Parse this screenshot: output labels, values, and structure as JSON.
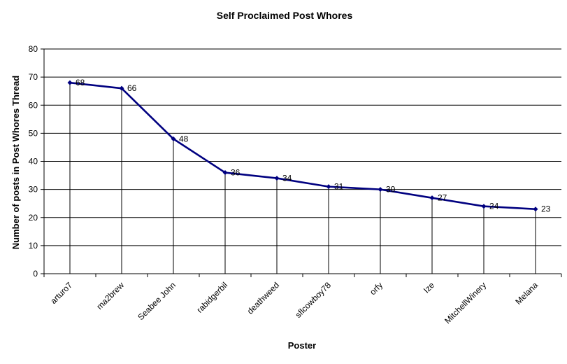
{
  "chart_data": {
    "type": "line",
    "title": "Self Proclaimed Post Whores",
    "xlabel": "Poster",
    "ylabel": "Number of posts in Post Whores Thread",
    "categories": [
      "arturo7",
      "ma2brew",
      "Seabee John",
      "rabidgerbil",
      "deathweed",
      "sflcowboy78",
      "orfy",
      "Ize",
      "MitchellWinery",
      "Melana"
    ],
    "series": [
      {
        "values": [
          68,
          66,
          48,
          36,
          34,
          31,
          30,
          27,
          24,
          23
        ]
      }
    ],
    "ylim": [
      0,
      80
    ],
    "yticks": [
      0,
      10,
      20,
      30,
      40,
      50,
      60,
      70,
      80
    ],
    "grid": true,
    "legend": "none",
    "line_color": "#000080"
  }
}
